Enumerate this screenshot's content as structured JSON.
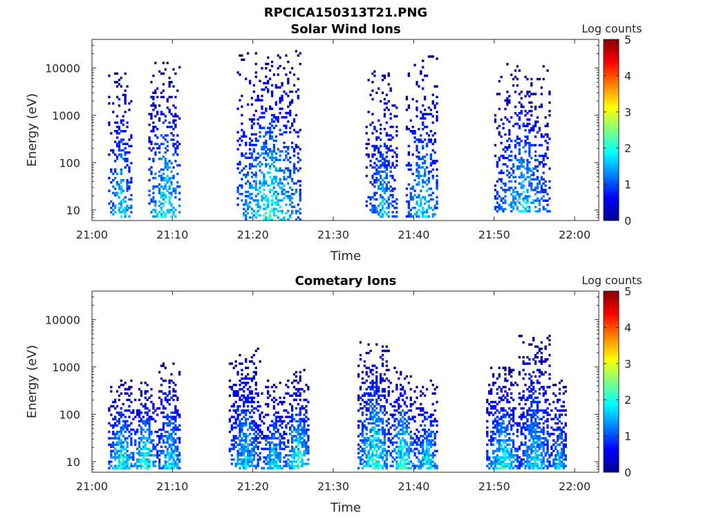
{
  "figure_title": "RPCICA150313T21.PNG",
  "colorbar": {
    "label": "Log counts",
    "range": [
      0,
      5
    ],
    "ticks": [
      "0",
      "1",
      "2",
      "3",
      "4",
      "5"
    ],
    "colormap": "jet"
  },
  "chart_data": [
    {
      "type": "heatmap",
      "title": "Solar Wind Ions",
      "xlabel": "Time",
      "ylabel": "Energy (eV)",
      "xlim": [
        "21:00",
        "22:03"
      ],
      "x_ticks": [
        "21:00",
        "21:10",
        "21:20",
        "21:30",
        "21:40",
        "21:50",
        "22:00"
      ],
      "ylim": [
        6,
        40000
      ],
      "yscale": "log",
      "y_ticks": [
        "10",
        "100",
        "1000",
        "10000"
      ],
      "clim": [
        0,
        5
      ],
      "clabel": "Log counts",
      "bursts": [
        {
          "start": "21:02",
          "end": "21:05",
          "energy_range": [
            7,
            8000
          ],
          "peak_log_counts": 2.3
        },
        {
          "start": "21:07",
          "end": "21:11",
          "energy_range": [
            7,
            13000
          ],
          "peak_log_counts": 2.5
        },
        {
          "start": "21:18",
          "end": "21:26",
          "energy_range": [
            6,
            22000
          ],
          "peak_log_counts": 2.6
        },
        {
          "start": "21:34",
          "end": "21:38",
          "energy_range": [
            7,
            10000
          ],
          "peak_log_counts": 2.0
        },
        {
          "start": "21:39",
          "end": "21:43",
          "energy_range": [
            7,
            17000
          ],
          "peak_log_counts": 2.2
        },
        {
          "start": "21:50",
          "end": "21:57",
          "energy_range": [
            9,
            13000
          ],
          "peak_log_counts": 2.2
        }
      ]
    },
    {
      "type": "heatmap",
      "title": "Cometary Ions",
      "xlabel": "Time",
      "ylabel": "Energy (eV)",
      "xlim": [
        "21:00",
        "22:03"
      ],
      "x_ticks": [
        "21:00",
        "21:10",
        "21:20",
        "21:30",
        "21:40",
        "21:50",
        "22:00"
      ],
      "ylim": [
        6,
        40000
      ],
      "yscale": "log",
      "y_ticks": [
        "10",
        "100",
        "1000",
        "10000"
      ],
      "clim": [
        0,
        5
      ],
      "clabel": "Log counts",
      "bursts": [
        {
          "start": "21:02",
          "end": "21:05",
          "energy_range": [
            7,
            500
          ],
          "peak_log_counts": 2.7
        },
        {
          "start": "21:05",
          "end": "21:08",
          "energy_range": [
            7,
            500
          ],
          "peak_log_counts": 2.8
        },
        {
          "start": "21:08",
          "end": "21:11",
          "energy_range": [
            7,
            1200
          ],
          "peak_log_counts": 2.4
        },
        {
          "start": "21:17",
          "end": "21:21",
          "energy_range": [
            7,
            2400
          ],
          "peak_log_counts": 2.2
        },
        {
          "start": "21:21",
          "end": "21:24",
          "energy_range": [
            7,
            500
          ],
          "peak_log_counts": 2.3
        },
        {
          "start": "21:24",
          "end": "21:27",
          "energy_range": [
            7,
            900
          ],
          "peak_log_counts": 2.7
        },
        {
          "start": "21:33",
          "end": "21:37",
          "energy_range": [
            7,
            3500
          ],
          "peak_log_counts": 2.7
        },
        {
          "start": "21:37",
          "end": "21:40",
          "energy_range": [
            7,
            1000
          ],
          "peak_log_counts": 2.8
        },
        {
          "start": "21:40",
          "end": "21:43",
          "energy_range": [
            7,
            500
          ],
          "peak_log_counts": 2.4
        },
        {
          "start": "21:49",
          "end": "21:53",
          "energy_range": [
            7,
            1000
          ],
          "peak_log_counts": 2.5
        },
        {
          "start": "21:53",
          "end": "21:57",
          "energy_range": [
            7,
            4500
          ],
          "peak_log_counts": 2.2
        },
        {
          "start": "21:57",
          "end": "21:59",
          "energy_range": [
            7,
            500
          ],
          "peak_log_counts": 2.1
        }
      ]
    }
  ]
}
